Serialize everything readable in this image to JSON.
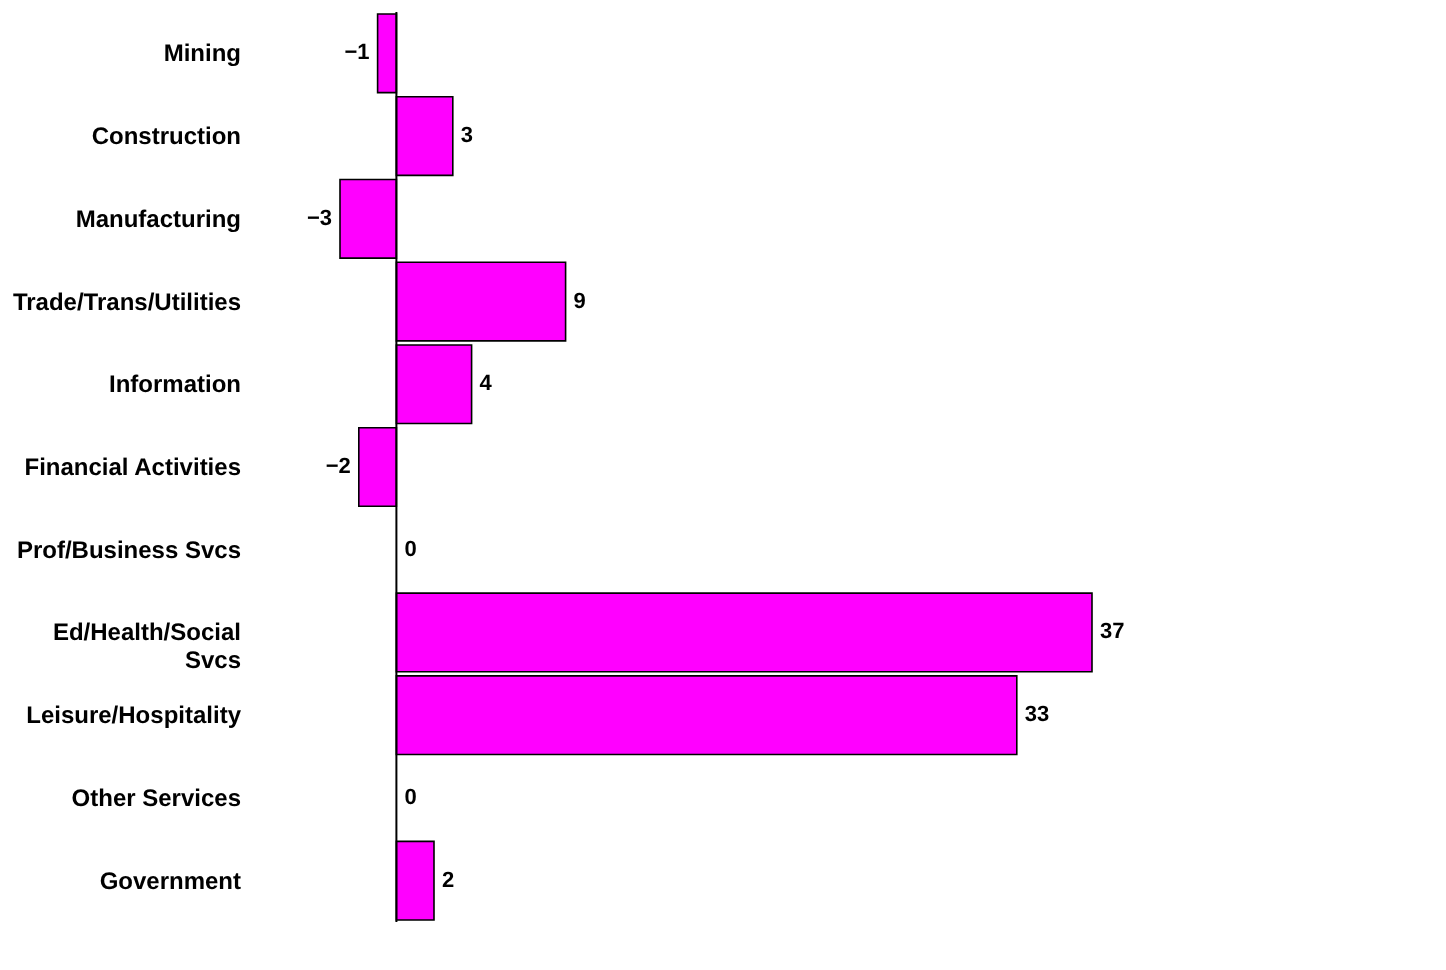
{
  "chart_data": {
    "type": "bar",
    "orientation": "horizontal",
    "data_labels": true,
    "color": "#ff00ff",
    "categories": [
      "Mining",
      "Construction",
      "Manufacturing",
      "Trade/Trans/Utilities",
      "Information",
      "Financial Activities",
      "Prof/Business Svcs",
      "Ed/Health/Social Svcs",
      "Leisure/Hospitality",
      "Other Services",
      "Government"
    ],
    "values": [
      -1,
      3,
      -3,
      9,
      4,
      -2,
      0,
      37,
      33,
      0,
      2
    ]
  }
}
